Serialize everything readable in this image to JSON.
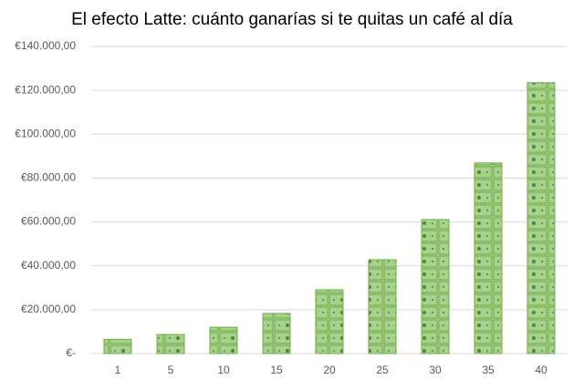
{
  "chart_data": {
    "type": "bar",
    "title": "El efecto Latte: cuánto ganarías si te quitas un café al día",
    "categories": [
      "1",
      "5",
      "10",
      "15",
      "20",
      "25",
      "30",
      "35",
      "40"
    ],
    "values": [
      6500,
      8700,
      12000,
      18300,
      29100,
      42800,
      61100,
      86900,
      123500
    ],
    "color": "#a9d18e",
    "ylim": [
      0,
      140000
    ],
    "yticks": [
      {
        "value": 0,
        "label": "€-"
      },
      {
        "value": 20000,
        "label": "€20.000,00"
      },
      {
        "value": 40000,
        "label": "€40.000,00"
      },
      {
        "value": 60000,
        "label": "€60.000,00"
      },
      {
        "value": 80000,
        "label": "€80.000,00"
      },
      {
        "value": 100000,
        "label": "€100.000,00"
      },
      {
        "value": 120000,
        "label": "€120.000,00"
      },
      {
        "value": 140000,
        "label": "€140.000,00"
      }
    ],
    "grid": true
  }
}
